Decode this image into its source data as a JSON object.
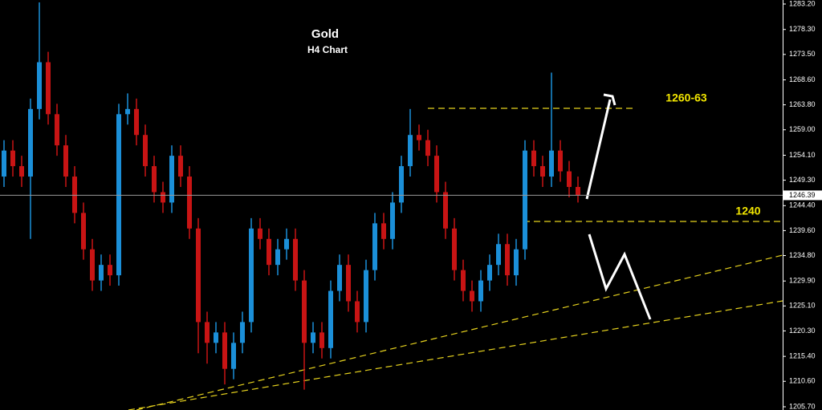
{
  "chart_data": {
    "type": "candlestick",
    "title": "Gold",
    "subtitle": "H4 Chart",
    "annotations": [
      "1260-63",
      "1240"
    ],
    "up_color": "#1b8fd8",
    "down_color": "#c81414",
    "open": [
      1250,
      1255,
      1252,
      1250,
      1263,
      1272,
      1262,
      1256,
      1250,
      1243,
      1236,
      1230,
      1233,
      1231,
      1262,
      1263,
      1258,
      1252,
      1247,
      1245,
      1254,
      1250,
      1240,
      1222,
      1218,
      1220,
      1213,
      1218,
      1222,
      1240,
      1238,
      1233,
      1236,
      1238,
      1230,
      1218,
      1220,
      1217,
      1228,
      1233,
      1226,
      1222,
      1232,
      1241,
      1238,
      1245,
      1252,
      1258,
      1257,
      1254,
      1247,
      1240,
      1232,
      1228,
      1226,
      1230,
      1233,
      1237,
      1231,
      1236,
      1255,
      1252,
      1250,
      1255,
      1251,
      1248
    ],
    "high": [
      1257,
      1257,
      1254,
      1265,
      1283.5,
      1274,
      1264,
      1258,
      1252,
      1245,
      1238,
      1235,
      1235,
      1264,
      1266,
      1265,
      1260,
      1254,
      1249,
      1256,
      1256,
      1252,
      1242,
      1224,
      1222,
      1222,
      1220,
      1224,
      1242,
      1242,
      1240,
      1238,
      1240,
      1240,
      1232,
      1222,
      1222,
      1230,
      1235,
      1235,
      1228,
      1234,
      1243,
      1243,
      1247,
      1254,
      1263,
      1260,
      1259,
      1256,
      1249,
      1242,
      1234,
      1230,
      1232,
      1235,
      1239,
      1239,
      1238,
      1257,
      1257,
      1254,
      1270,
      1257,
      1253,
      1250
    ],
    "low": [
      1248,
      1250,
      1248,
      1238,
      1261,
      1260,
      1254,
      1248,
      1241,
      1234,
      1228,
      1228,
      1229,
      1229,
      1260,
      1256,
      1250,
      1245,
      1243,
      1243,
      1248,
      1238,
      1216,
      1214,
      1216,
      1210,
      1211,
      1216,
      1220,
      1236,
      1231,
      1231,
      1234,
      1228,
      1209,
      1216,
      1215,
      1215,
      1226,
      1224,
      1220,
      1220,
      1230,
      1236,
      1236,
      1243,
      1250,
      1255,
      1252,
      1245,
      1238,
      1230,
      1226,
      1224,
      1224,
      1228,
      1231,
      1229,
      1229,
      1234,
      1250,
      1248,
      1248,
      1249,
      1246,
      1245
    ],
    "close": [
      1255,
      1252,
      1250,
      1263,
      1272,
      1262,
      1256,
      1250,
      1243,
      1236,
      1230,
      1233,
      1231,
      1262,
      1263,
      1258,
      1252,
      1247,
      1245,
      1254,
      1250,
      1240,
      1222,
      1218,
      1220,
      1213,
      1218,
      1222,
      1240,
      1238,
      1233,
      1236,
      1238,
      1230,
      1218,
      1220,
      1217,
      1228,
      1233,
      1226,
      1222,
      1232,
      1241,
      1238,
      1245,
      1252,
      1258,
      1257,
      1254,
      1247,
      1240,
      1232,
      1228,
      1226,
      1230,
      1233,
      1237,
      1231,
      1236,
      1255,
      1252,
      1250,
      1255,
      1251,
      1248,
      1246.39
    ],
    "last_price": {
      "value": 1246.39,
      "label": "1246.39"
    },
    "ylim": [
      1205.08,
      1283.97
    ],
    "yticks": [
      {
        "value": 1283.2,
        "label": "1283.20"
      },
      {
        "value": 1278.3,
        "label": "1278.30"
      },
      {
        "value": 1273.5,
        "label": "1273.50"
      },
      {
        "value": 1268.6,
        "label": "1268.60"
      },
      {
        "value": 1263.8,
        "label": "1263.80"
      },
      {
        "value": 1259.0,
        "label": "1259.00"
      },
      {
        "value": 1254.1,
        "label": "1254.10"
      },
      {
        "value": 1249.3,
        "label": "1249.30"
      },
      {
        "value": 1244.4,
        "label": "1244.40"
      },
      {
        "value": 1239.6,
        "label": "1239.60"
      },
      {
        "value": 1234.8,
        "label": "1234.80"
      },
      {
        "value": 1229.9,
        "label": "1229.90"
      },
      {
        "value": 1225.1,
        "label": "1225.10"
      },
      {
        "value": 1220.3,
        "label": "1220.30"
      },
      {
        "value": 1215.4,
        "label": "1215.40"
      },
      {
        "value": 1210.6,
        "label": "1210.60"
      },
      {
        "value": 1205.7,
        "label": "1205.70"
      }
    ]
  }
}
